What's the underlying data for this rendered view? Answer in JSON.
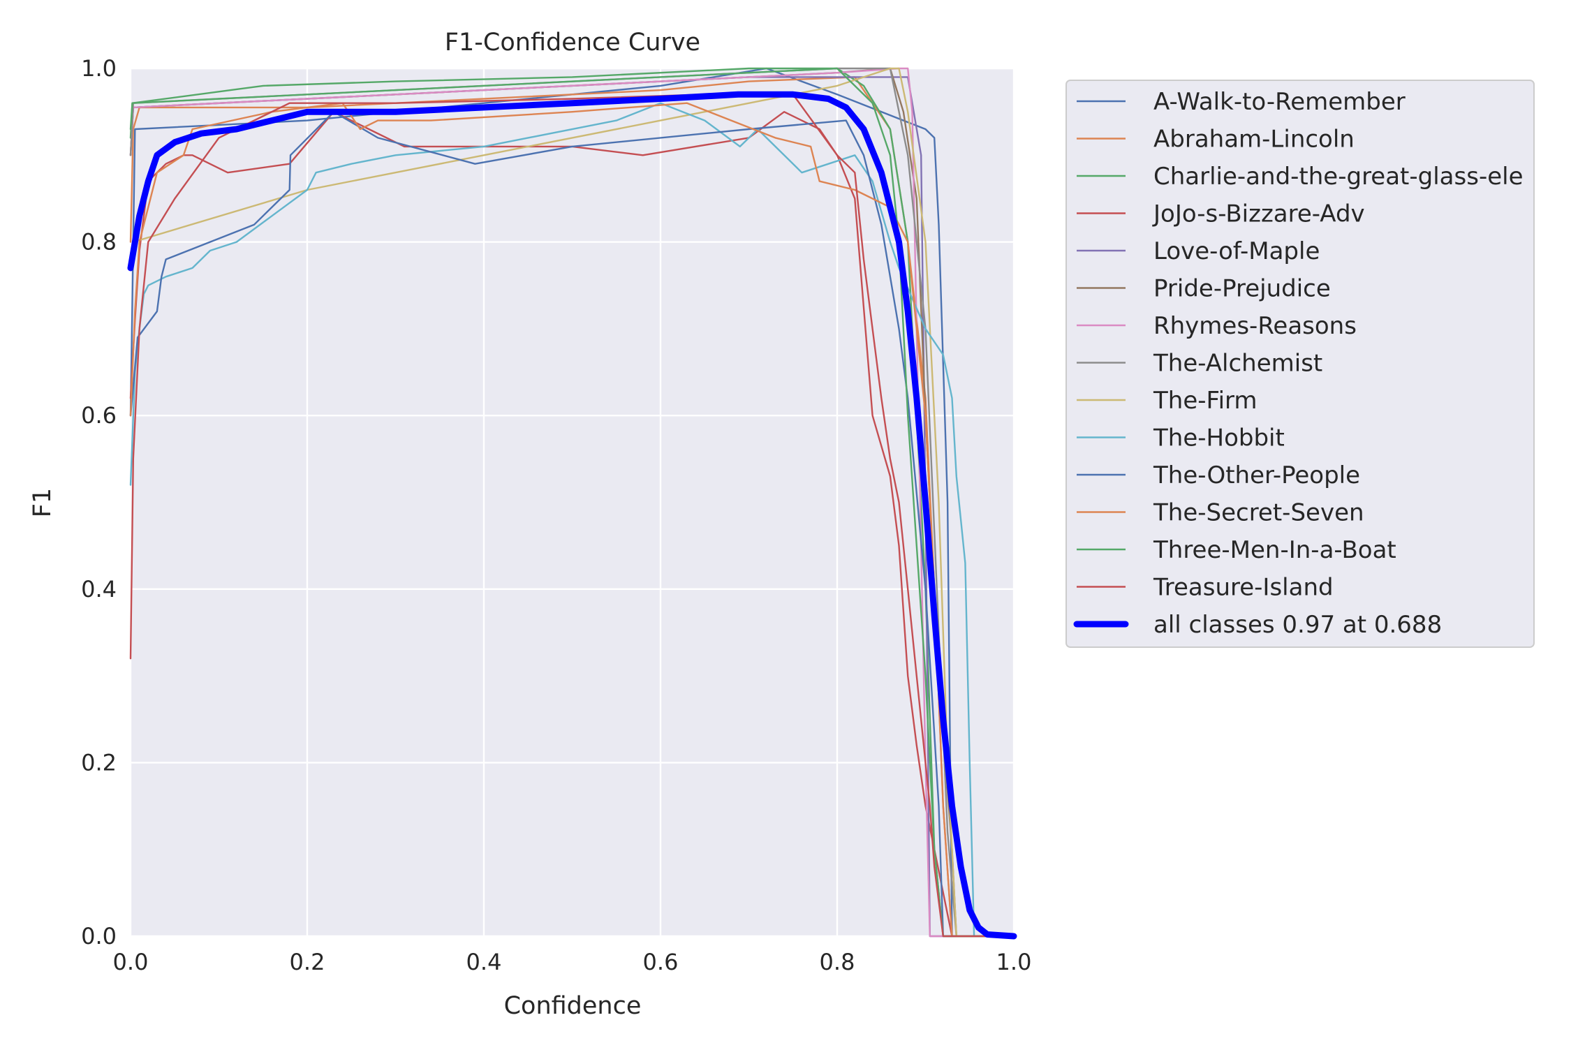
{
  "chart_data": {
    "type": "line",
    "title": "F1-Confidence Curve",
    "xlabel": "Confidence",
    "ylabel": "F1",
    "xlim": [
      0.0,
      1.0
    ],
    "ylim": [
      0.0,
      1.0
    ],
    "xticks": [
      "0.0",
      "0.2",
      "0.4",
      "0.6",
      "0.8",
      "1.0"
    ],
    "yticks": [
      "0.0",
      "0.2",
      "0.4",
      "0.6",
      "0.8",
      "1.0"
    ],
    "grid": true,
    "legend_position": "outside-right",
    "series": [
      {
        "name": "A-Walk-to-Remember",
        "color": "#4c72b0",
        "x": [
          0,
          0.005,
          0.2,
          0.4,
          0.6,
          0.72,
          0.8,
          0.9,
          0.91,
          0.915,
          0.925,
          0.93,
          1.0
        ],
        "y": [
          0.6,
          0.93,
          0.94,
          0.96,
          0.98,
          1.0,
          0.97,
          0.93,
          0.92,
          0.82,
          0.5,
          0,
          0
        ]
      },
      {
        "name": "Abraham-Lincoln",
        "color": "#dd8452",
        "x": [
          0,
          0.003,
          0.01,
          0.1,
          0.2,
          0.3,
          0.5,
          0.6,
          0.7,
          0.82,
          0.86,
          0.88,
          0.9,
          0.91,
          0.92,
          0.93,
          1.0
        ],
        "y": [
          0.8,
          0.93,
          0.955,
          0.955,
          0.955,
          0.96,
          0.97,
          0.975,
          0.985,
          0.99,
          0.93,
          0.8,
          0.62,
          0.4,
          0.15,
          0,
          0
        ]
      },
      {
        "name": "Charlie-and-the-great-glass-ele",
        "color": "#55a868",
        "x": [
          0,
          0.002,
          0.15,
          0.3,
          0.5,
          0.7,
          0.8,
          0.83,
          0.86,
          0.88,
          0.9,
          0.91,
          0.92,
          1.0
        ],
        "y": [
          0.92,
          0.96,
          0.98,
          0.985,
          0.99,
          1.0,
          1.0,
          0.98,
          0.93,
          0.8,
          0.4,
          0.1,
          0,
          0
        ]
      },
      {
        "name": "JoJo-s-Bizzare-Adv",
        "color": "#c44e52",
        "x": [
          0,
          0.005,
          0.01,
          0.02,
          0.04,
          0.06,
          0.07,
          0.11,
          0.18,
          0.23,
          0.31,
          0.5,
          0.58,
          0.7,
          0.74,
          0.78,
          0.8,
          0.82,
          0.84,
          0.86,
          0.87,
          0.88,
          0.89,
          0.9,
          0.91,
          0.92,
          0.93,
          1.0
        ],
        "y": [
          0.62,
          0.71,
          0.79,
          0.87,
          0.89,
          0.9,
          0.9,
          0.88,
          0.89,
          0.95,
          0.91,
          0.91,
          0.9,
          0.92,
          0.95,
          0.93,
          0.9,
          0.85,
          0.6,
          0.53,
          0.45,
          0.3,
          0.22,
          0.15,
          0.1,
          0.05,
          0,
          0
        ]
      },
      {
        "name": "Love-of-Maple",
        "color": "#8172b3",
        "x": [
          0,
          0.003,
          0.1,
          0.3,
          0.5,
          0.7,
          0.8,
          0.85,
          0.88,
          0.895,
          0.9,
          0.905,
          1.0
        ],
        "y": [
          0.9,
          0.955,
          0.96,
          0.97,
          0.98,
          0.99,
          0.99,
          0.99,
          0.99,
          0.9,
          0.5,
          0,
          0
        ]
      },
      {
        "name": "Pride-Prejudice",
        "color": "#937860",
        "x": [
          0,
          0.003,
          0.2,
          0.4,
          0.6,
          0.8,
          0.86,
          0.875,
          0.89,
          0.9,
          0.915,
          0.93,
          0.935,
          1.0
        ],
        "y": [
          0.9,
          0.955,
          0.965,
          0.975,
          0.985,
          0.995,
          1.0,
          0.95,
          0.85,
          0.6,
          0.3,
          0.1,
          0,
          0
        ]
      },
      {
        "name": "Rhymes-Reasons",
        "color": "#da8bc3",
        "x": [
          0,
          0.003,
          0.2,
          0.4,
          0.6,
          0.8,
          0.87,
          0.88,
          0.885,
          0.89,
          0.9,
          0.905,
          1.0
        ],
        "y": [
          0.9,
          0.955,
          0.965,
          0.975,
          0.985,
          0.995,
          1.0,
          1.0,
          0.95,
          0.7,
          0.2,
          0,
          0
        ]
      },
      {
        "name": "The-Alchemist",
        "color": "#8c8c8c",
        "x": [
          0,
          0.003,
          0.2,
          0.4,
          0.6,
          0.8,
          0.86,
          0.88,
          0.9,
          0.915,
          0.925,
          0.935,
          1.0
        ],
        "y": [
          0.9,
          0.96,
          0.97,
          0.98,
          0.99,
          1.0,
          1.0,
          0.9,
          0.7,
          0.35,
          0.12,
          0,
          0
        ]
      },
      {
        "name": "The-Firm",
        "color": "#ccb974",
        "x": [
          0,
          0.003,
          0.2,
          0.4,
          0.6,
          0.8,
          0.86,
          0.87,
          0.88,
          0.9,
          0.915,
          0.925,
          0.935,
          1.0
        ],
        "y": [
          0.78,
          0.8,
          0.86,
          0.9,
          0.94,
          0.98,
          1.0,
          1.0,
          0.95,
          0.8,
          0.5,
          0.2,
          0,
          0
        ]
      },
      {
        "name": "The-Hobbit",
        "color": "#64b5cd",
        "x": [
          0,
          0.005,
          0.01,
          0.015,
          0.02,
          0.04,
          0.07,
          0.09,
          0.12,
          0.16,
          0.2,
          0.21,
          0.25,
          0.3,
          0.4,
          0.55,
          0.6,
          0.65,
          0.69,
          0.71,
          0.76,
          0.82,
          0.84,
          0.86,
          0.87,
          0.9,
          0.92,
          0.93,
          0.935,
          0.945,
          0.95,
          0.955,
          1.0
        ],
        "y": [
          0.52,
          0.65,
          0.7,
          0.74,
          0.75,
          0.76,
          0.77,
          0.79,
          0.8,
          0.83,
          0.86,
          0.88,
          0.89,
          0.9,
          0.91,
          0.94,
          0.96,
          0.94,
          0.91,
          0.93,
          0.88,
          0.9,
          0.87,
          0.8,
          0.77,
          0.7,
          0.67,
          0.62,
          0.53,
          0.43,
          0.2,
          0,
          0
        ]
      },
      {
        "name": "The-Other-People",
        "color": "#4c72b0",
        "x": [
          0,
          0.008,
          0.03,
          0.035,
          0.04,
          0.14,
          0.18,
          0.181,
          0.23,
          0.28,
          0.39,
          0.5,
          0.7,
          0.81,
          0.83,
          0.85,
          0.87,
          0.88,
          0.9,
          0.915,
          0.92,
          1.0
        ],
        "y": [
          0.6,
          0.69,
          0.72,
          0.76,
          0.78,
          0.82,
          0.86,
          0.9,
          0.95,
          0.92,
          0.89,
          0.91,
          0.93,
          0.94,
          0.9,
          0.82,
          0.7,
          0.62,
          0.4,
          0.15,
          0,
          0
        ]
      },
      {
        "name": "The-Secret-Seven",
        "color": "#dd8452",
        "x": [
          0,
          0.005,
          0.01,
          0.03,
          0.06,
          0.07,
          0.16,
          0.24,
          0.26,
          0.28,
          0.34,
          0.5,
          0.63,
          0.73,
          0.77,
          0.78,
          0.82,
          0.86,
          0.88,
          0.9,
          0.91,
          0.92,
          0.93,
          1.0
        ],
        "y": [
          0.6,
          0.72,
          0.8,
          0.88,
          0.9,
          0.93,
          0.95,
          0.96,
          0.93,
          0.94,
          0.94,
          0.95,
          0.96,
          0.92,
          0.91,
          0.87,
          0.86,
          0.84,
          0.8,
          0.6,
          0.4,
          0.15,
          0,
          0
        ]
      },
      {
        "name": "Three-Men-In-a-Boat",
        "color": "#55a868",
        "x": [
          0,
          0.002,
          0.1,
          0.3,
          0.5,
          0.7,
          0.8,
          0.84,
          0.86,
          0.87,
          0.88,
          0.89,
          0.9,
          0.91,
          0.92,
          1.0
        ],
        "y": [
          0.93,
          0.96,
          0.965,
          0.975,
          0.985,
          0.995,
          1.0,
          0.96,
          0.9,
          0.8,
          0.6,
          0.45,
          0.3,
          0.1,
          0,
          0
        ]
      },
      {
        "name": "Treasure-Island",
        "color": "#c44e52",
        "x": [
          0,
          0.003,
          0.01,
          0.02,
          0.05,
          0.1,
          0.18,
          0.3,
          0.5,
          0.65,
          0.75,
          0.8,
          0.82,
          0.83,
          0.84,
          0.85,
          0.86,
          0.87,
          0.88,
          0.89,
          0.9,
          0.905,
          0.91,
          0.92,
          1.0
        ],
        "y": [
          0.32,
          0.55,
          0.7,
          0.8,
          0.85,
          0.92,
          0.96,
          0.96,
          0.965,
          0.97,
          0.97,
          0.9,
          0.88,
          0.78,
          0.7,
          0.62,
          0.55,
          0.5,
          0.4,
          0.3,
          0.2,
          0.15,
          0.08,
          0,
          0
        ]
      },
      {
        "name": "all classes 0.97 at 0.688",
        "color": "#0000ff",
        "bold": true,
        "x": [
          0,
          0.01,
          0.02,
          0.03,
          0.05,
          0.08,
          0.12,
          0.16,
          0.2,
          0.25,
          0.3,
          0.4,
          0.5,
          0.6,
          0.688,
          0.75,
          0.79,
          0.81,
          0.83,
          0.85,
          0.87,
          0.88,
          0.89,
          0.9,
          0.91,
          0.92,
          0.93,
          0.94,
          0.95,
          0.96,
          0.97,
          1.0
        ],
        "y": [
          0.77,
          0.83,
          0.87,
          0.9,
          0.915,
          0.925,
          0.93,
          0.94,
          0.95,
          0.95,
          0.95,
          0.955,
          0.96,
          0.965,
          0.97,
          0.97,
          0.965,
          0.955,
          0.93,
          0.88,
          0.8,
          0.72,
          0.62,
          0.5,
          0.37,
          0.25,
          0.15,
          0.08,
          0.03,
          0.01,
          0.002,
          0.0
        ]
      }
    ]
  }
}
